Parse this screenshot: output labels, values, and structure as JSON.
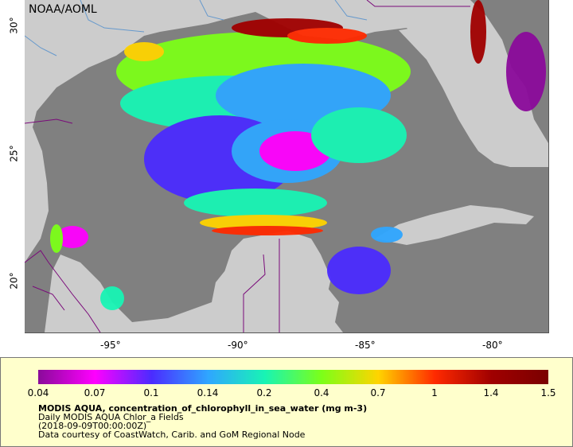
{
  "credit": "NOAA/AOML",
  "axes": {
    "lon_ticks": [
      "-95°",
      "-90°",
      "-85°",
      "-80°"
    ],
    "lat_ticks": [
      "30°",
      "25°",
      "20°"
    ]
  },
  "colorbar": {
    "ticks": [
      "0.04",
      "0.07",
      "0.1",
      "0.14",
      "0.2",
      "0.4",
      "0.7",
      "1",
      "1.4",
      "1.5"
    ],
    "colors": [
      "#8a0a9a",
      "#ff00ff",
      "#4b2bff",
      "#2fa6ff",
      "#18f4b4",
      "#7cff18",
      "#ffd400",
      "#ff2a00",
      "#a00000",
      "#7a0000"
    ]
  },
  "legend": {
    "title": "MODIS AQUA, concentration_of_chlorophyll_in_sea_water (mg m-3)",
    "line2": "Daily MODIS AQUA Chlor_a Fields",
    "line3": "(2018-09-09T00:00:00Z)",
    "line4": "Data courtesy of CoastWatch, Carib. and GoM Regional Node"
  },
  "colors": {
    "land": "#cccccc",
    "no_data_ocean": "#808080",
    "border": "#7a0a7a",
    "river": "#6699cc"
  }
}
